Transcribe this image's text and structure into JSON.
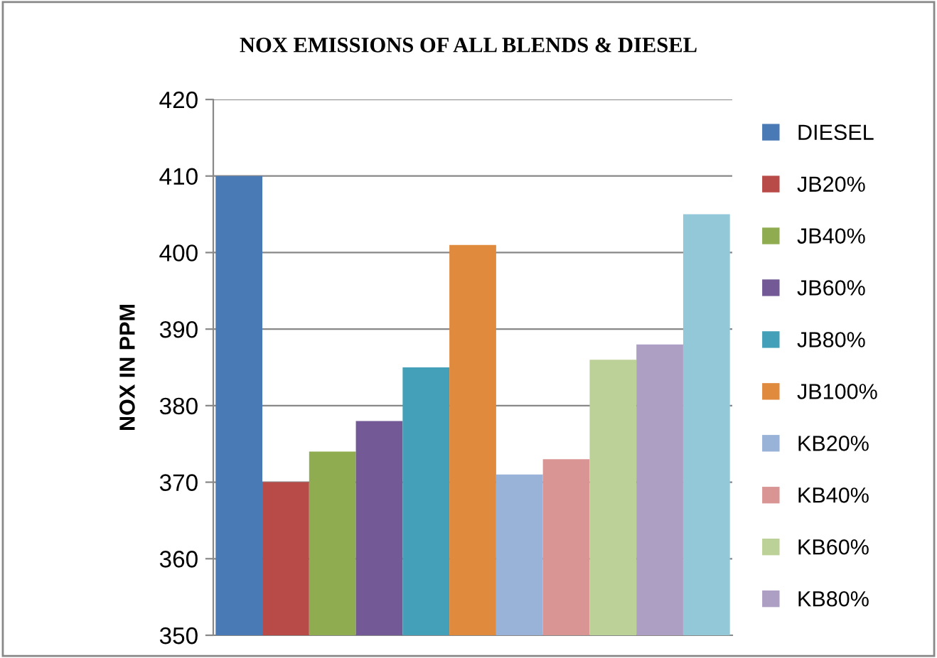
{
  "chart_data": {
    "type": "bar",
    "title": "NOX EMISSIONS OF ALL BLENDS & DIESEL",
    "ylabel": "NOX IN PPM",
    "categories": [
      null
    ],
    "series": [
      {
        "name": "DIESEL",
        "color": "#4a7ab5",
        "values": [
          410
        ]
      },
      {
        "name": "JB20%",
        "color": "#b84a48",
        "values": [
          370
        ]
      },
      {
        "name": "JB40%",
        "color": "#8fad50",
        "values": [
          374
        ]
      },
      {
        "name": "JB60%",
        "color": "#735a96",
        "values": [
          378
        ]
      },
      {
        "name": "JB80%",
        "color": "#43a0b8",
        "values": [
          385
        ]
      },
      {
        "name": "JB100%",
        "color": "#e08a3e",
        "values": [
          401
        ]
      },
      {
        "name": "KB20%",
        "color": "#98b2d8",
        "values": [
          371
        ]
      },
      {
        "name": "KB40%",
        "color": "#d99593",
        "values": [
          373
        ]
      },
      {
        "name": "KB60%",
        "color": "#bcd197",
        "values": [
          386
        ]
      },
      {
        "name": "KB80%",
        "color": "#ad9fc4",
        "values": [
          388
        ]
      },
      {
        "color": "#93c8d8",
        "values": [
          405
        ]
      }
    ],
    "ylim": [
      350,
      420
    ],
    "yticks": [
      350,
      360,
      370,
      380,
      390,
      400,
      410,
      420
    ],
    "grid": "y",
    "legend": "right",
    "tick_labels": "y"
  }
}
